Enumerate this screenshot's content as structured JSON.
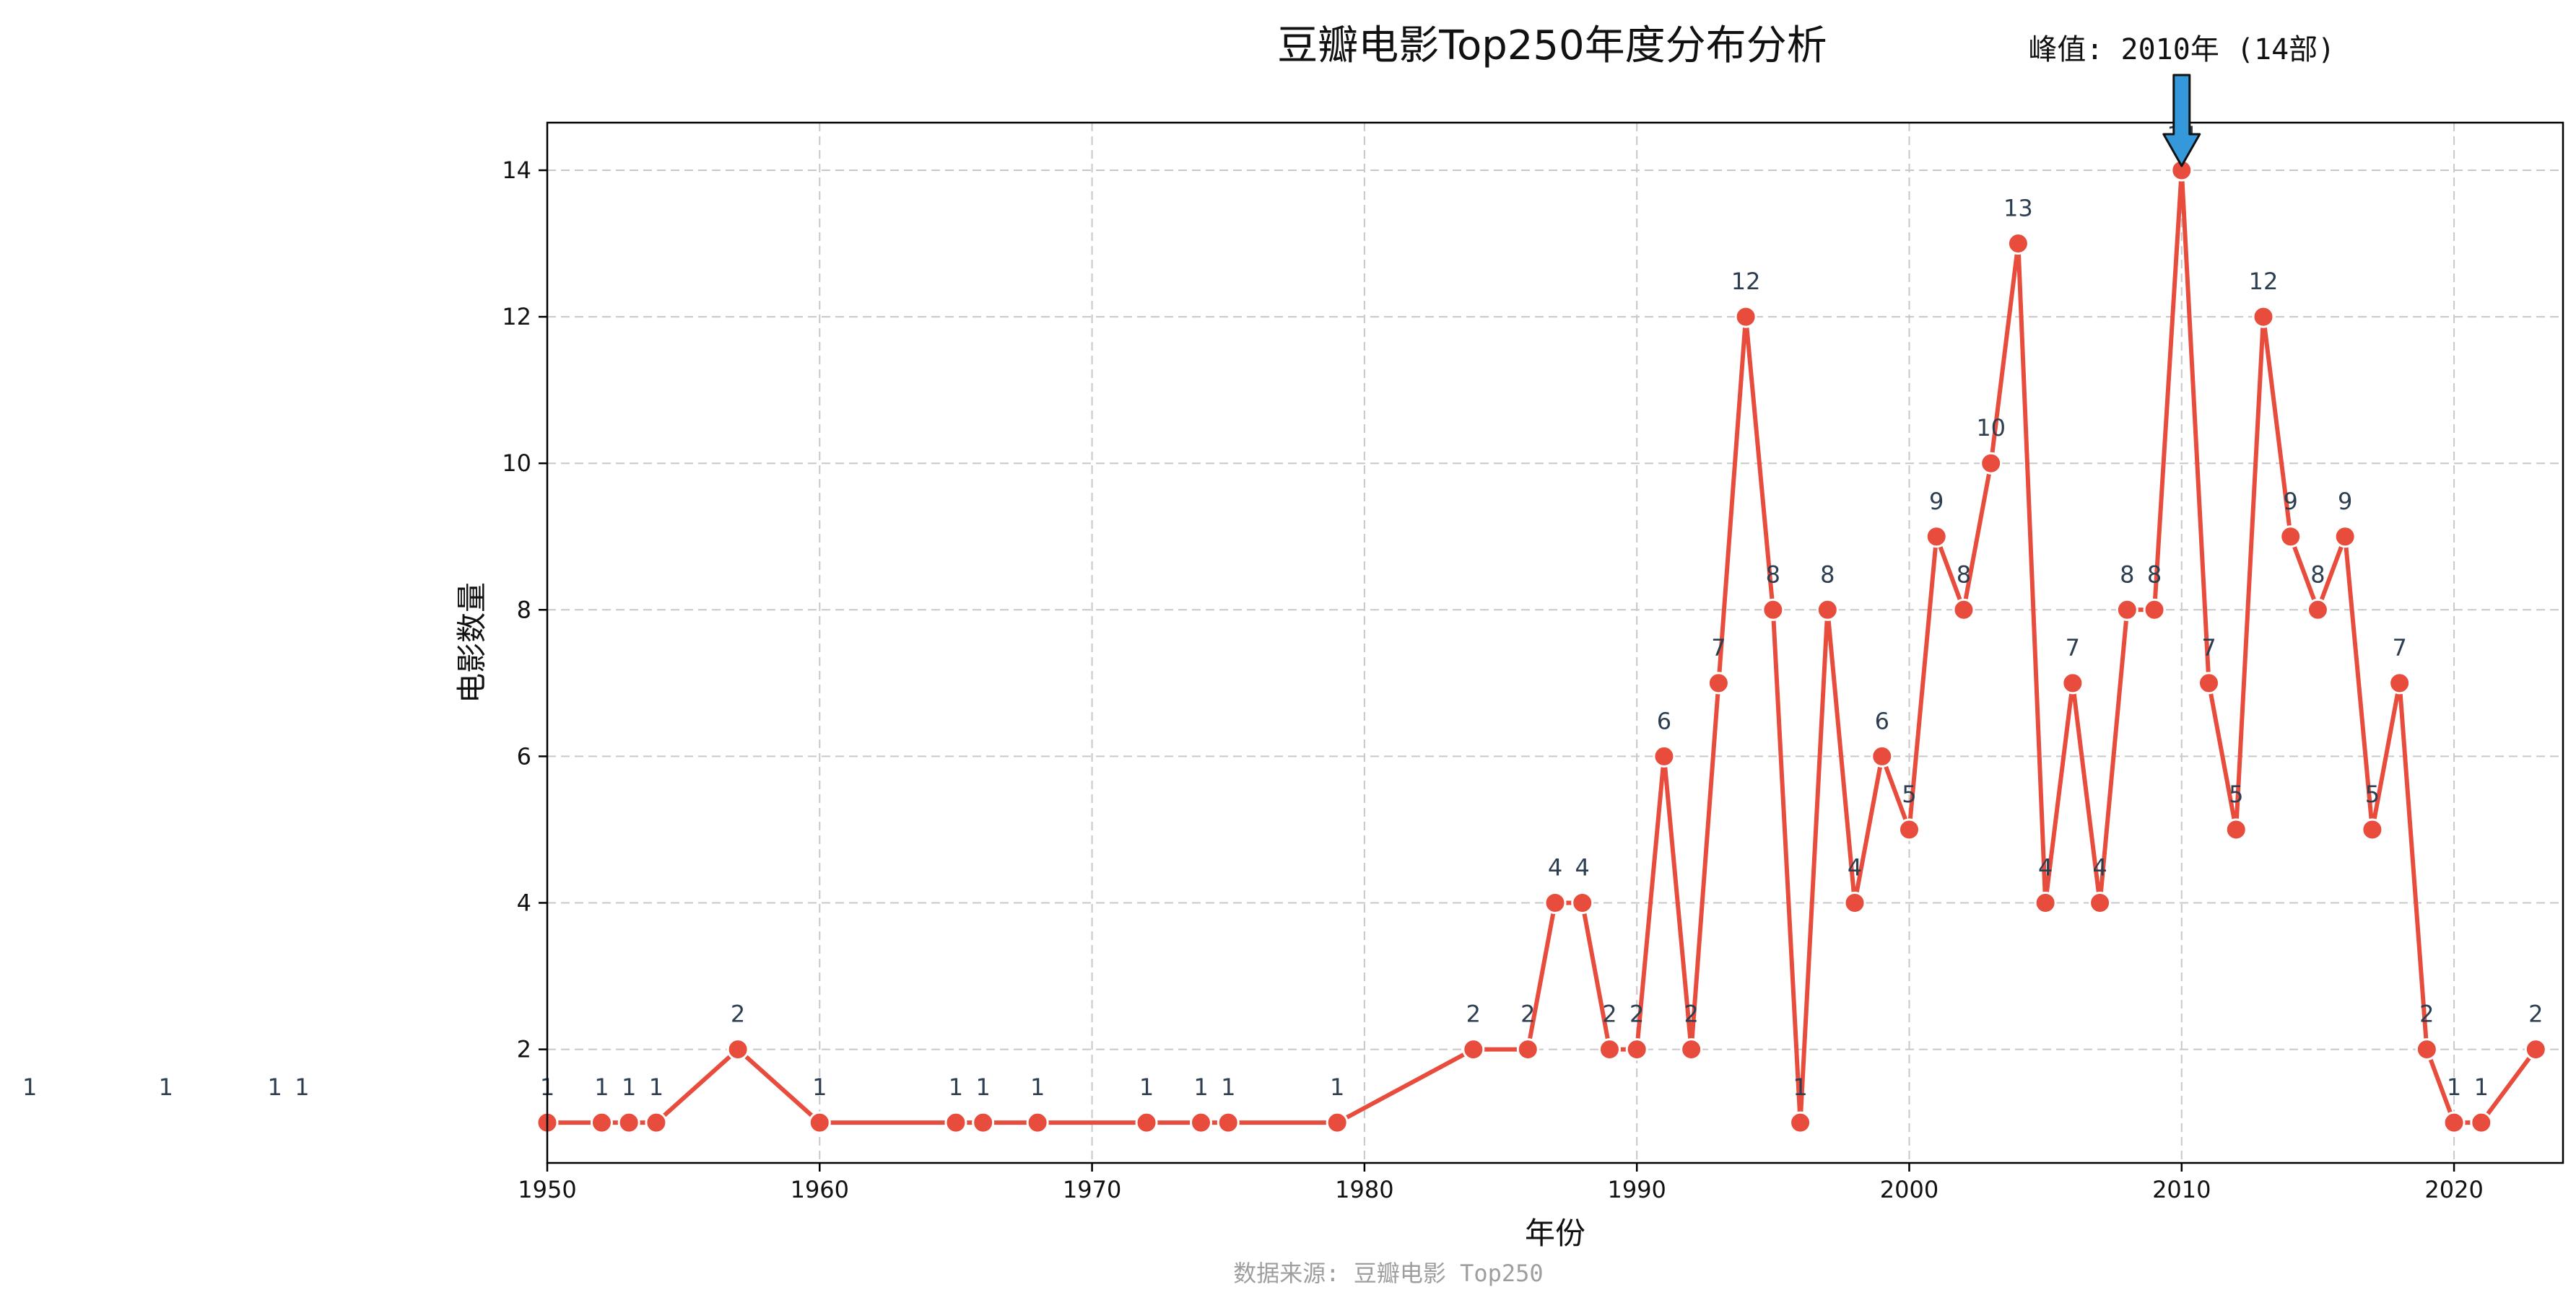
{
  "chart_data": {
    "type": "line",
    "title": "豆瓣电影Top250年度分布分析",
    "xlabel": "年份",
    "ylabel": "电影数量",
    "xlim": [
      1950,
      2024
    ],
    "ylim": [
      0.45,
      14.65
    ],
    "xticks": [
      1950,
      1960,
      1970,
      1980,
      1990,
      2000,
      2010,
      2020
    ],
    "yticks": [
      2,
      4,
      6,
      8,
      10,
      12,
      14
    ],
    "grid": true,
    "x": [
      1950,
      1952,
      1953,
      1954,
      1957,
      1960,
      1965,
      1966,
      1968,
      1972,
      1974,
      1975,
      1979,
      1984,
      1986,
      1987,
      1988,
      1989,
      1990,
      1991,
      1992,
      1993,
      1994,
      1995,
      1996,
      1997,
      1998,
      1999,
      2000,
      2001,
      2002,
      2003,
      2004,
      2005,
      2006,
      2007,
      2008,
      2009,
      2010,
      2011,
      2012,
      2013,
      2014,
      2015,
      2016,
      2017,
      2018,
      2019,
      2020,
      2021,
      2023
    ],
    "values": [
      1,
      1,
      1,
      1,
      2,
      1,
      1,
      1,
      1,
      1,
      1,
      1,
      1,
      2,
      2,
      4,
      4,
      2,
      2,
      6,
      2,
      7,
      12,
      8,
      1,
      8,
      4,
      6,
      5,
      9,
      8,
      10,
      13,
      4,
      7,
      4,
      8,
      8,
      14,
      7,
      5,
      12,
      9,
      8,
      9,
      5,
      7,
      2,
      1,
      1,
      2
    ],
    "outside_labels": [
      {
        "x": 1931,
        "text": "1"
      },
      {
        "x": 1936,
        "text": "1"
      },
      {
        "x": 1940,
        "text": "1"
      },
      {
        "x": 1941,
        "text": "1"
      }
    ],
    "annotation": {
      "text": "峰值: 2010年 (14部)",
      "x": 2010,
      "y": 14
    },
    "source": "数据来源: 豆瓣电影 Top250",
    "line_color": "#e74c3c",
    "marker_color": "#e74c3c",
    "label_color": "#2c3e50",
    "arrow_color": "#3498db"
  }
}
